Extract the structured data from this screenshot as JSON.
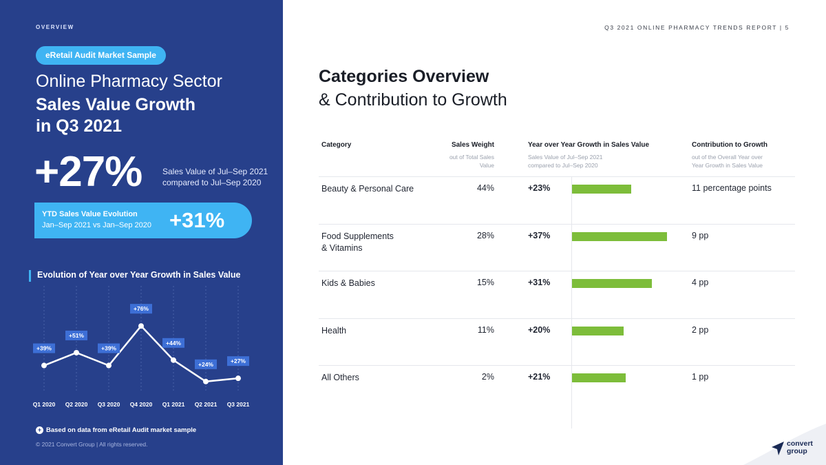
{
  "left": {
    "overview": "OVERVIEW",
    "pill": "eRetail Audit Market Sample",
    "title_line1": "Online Pharmacy Sector",
    "title_line2": "Sales Value Growth in Q3 2021",
    "big_value": "+27%",
    "big_note_1": "Sales Value of Jul–Sep 2021",
    "big_note_2": "compared to Jul–Sep 2020",
    "ytd_line1": "YTD Sales Value Evolution",
    "ytd_line2": "Jan–Sep 2021 vs Jan–Sep 2020",
    "ytd_value": "+31%",
    "evolution_title": "Evolution of Year over Year Growth in Sales Value",
    "footnote": "Based on data from eRetail Audit market sample",
    "copyright": "© 2021 Convert Group  |  All rights reserved."
  },
  "chart_data": {
    "type": "line",
    "categories": [
      "Q1 2020",
      "Q2 2020",
      "Q3 2020",
      "Q4 2020",
      "Q1 2021",
      "Q2 2021",
      "Q3 2021"
    ],
    "values": [
      39,
      51,
      39,
      76,
      44,
      24,
      27
    ],
    "labels": [
      "+39%",
      "+51%",
      "+39%",
      "+76%",
      "+44%",
      "+24%",
      "+27%"
    ],
    "title": "Evolution of Year over Year Growth in Sales Value",
    "ylim": [
      0,
      100
    ],
    "colors": {
      "line": "#ffffff",
      "label_bg": "#3d6fd6",
      "grid": "#4a62a8"
    }
  },
  "right": {
    "report": "Q3 2021 ONLINE PHARMACY TRENDS REPORT  |  5",
    "heading_bold": "Categories Overview",
    "heading_light": "& Contribution to Growth",
    "columns": {
      "category": "Category",
      "weight": "Sales Weight",
      "weight_sub_1": "out of Total Sales",
      "weight_sub_2": "Value",
      "growth": "Year over Year Growth in Sales Value",
      "growth_sub_1": "Sales Value of Jul–Sep 2021",
      "growth_sub_2": "compared to Jul–Sep 2020",
      "contrib": "Contribution to Growth",
      "contrib_sub_1": "out of the Overall Year over",
      "contrib_sub_2": "Year Growth in Sales Value"
    },
    "rows": [
      {
        "category": "Beauty & Personal Care",
        "weight": "44%",
        "growth": "+23%",
        "growth_value": 23,
        "contribution": "11 percentage points"
      },
      {
        "category": "Food Supplements & Vitamins",
        "weight": "28%",
        "growth": "+37%",
        "growth_value": 37,
        "contribution": "9 pp"
      },
      {
        "category": "Kids & Babies",
        "weight": "15%",
        "growth": "+31%",
        "growth_value": 31,
        "contribution": "4 pp"
      },
      {
        "category": "Health",
        "weight": "11%",
        "growth": "+20%",
        "growth_value": 20,
        "contribution": "2 pp"
      },
      {
        "category": "All Others",
        "weight": "2%",
        "growth": "+21%",
        "growth_value": 21,
        "contribution": "1 pp"
      }
    ],
    "bar_color": "#7dbd3a",
    "logo": "convert group"
  }
}
